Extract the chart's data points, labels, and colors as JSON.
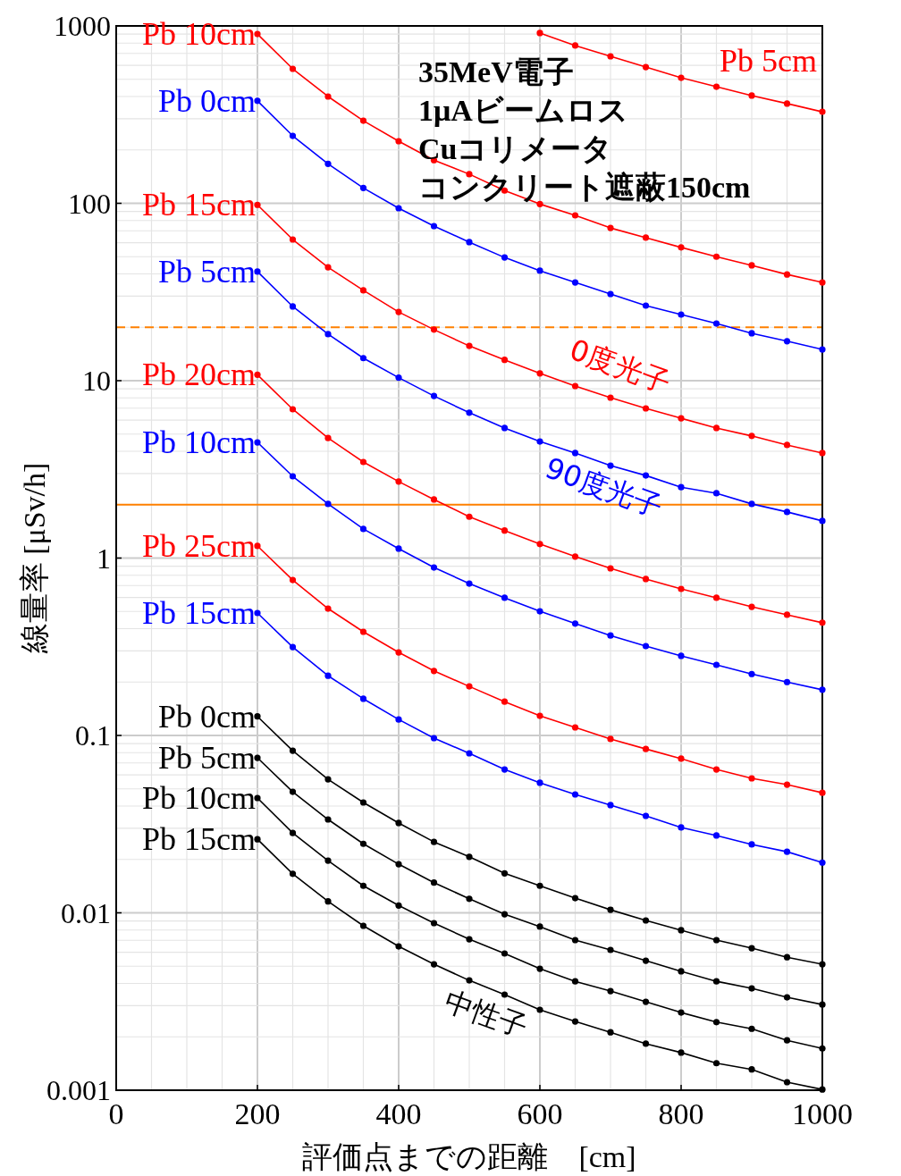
{
  "chart_data": {
    "type": "line",
    "xlabel": "評価点までの距離　[cm]",
    "ylabel": "線量率 [μSv/h]",
    "x": [
      200,
      250,
      300,
      350,
      400,
      450,
      500,
      550,
      600,
      650,
      700,
      750,
      800,
      850,
      900,
      950,
      1000
    ],
    "xlim": [
      0,
      1000
    ],
    "xticks": [
      0,
      200,
      400,
      600,
      800,
      1000
    ],
    "log": true,
    "ylim": [
      0.001,
      1000
    ],
    "yticks": [
      0.001,
      0.01,
      0.1,
      1,
      10,
      100,
      1000
    ],
    "grid": true,
    "marker": "circle",
    "line_style": "solid",
    "series": [
      {
        "name": "Pb 5cm",
        "color": "#ff0000",
        "values": [
          null,
          null,
          null,
          null,
          null,
          null,
          null,
          null,
          912,
          775,
          674,
          586,
          510,
          454,
          405,
          365,
          328
        ]
      },
      {
        "name": "Pb 10cm",
        "color": "#ff0000",
        "values": [
          900,
          573,
          400,
          292,
          224,
          175,
          146,
          118,
          99,
          85.5,
          72.6,
          64,
          56.4,
          50,
          44.7,
          39.7,
          35.8
        ]
      },
      {
        "name": "Pb 15cm",
        "color": "#ff0000",
        "values": [
          98,
          62.5,
          43.6,
          32.3,
          24.4,
          19.4,
          15.7,
          13.1,
          11.0,
          9.33,
          8.02,
          6.98,
          6.14,
          5.41,
          4.88,
          4.34,
          3.91
        ]
      },
      {
        "name": "Pb 20cm",
        "color": "#ff0000",
        "values": [
          10.8,
          6.9,
          4.75,
          3.48,
          2.7,
          2.14,
          1.71,
          1.43,
          1.2,
          1.02,
          0.875,
          0.762,
          0.67,
          0.597,
          0.531,
          0.479,
          0.432
        ]
      },
      {
        "name": "Pb 25cm",
        "color": "#ff0000",
        "values": [
          1.17,
          0.752,
          0.519,
          0.384,
          0.294,
          0.231,
          0.189,
          0.155,
          0.129,
          0.111,
          0.0955,
          0.0839,
          0.074,
          0.0643,
          0.0573,
          0.0528,
          0.0475
        ]
      },
      {
        "name": "Pb 0cm",
        "color": "#0000ff",
        "values": [
          378,
          240,
          167,
          122,
          93.8,
          74.4,
          60.4,
          49.5,
          41.7,
          35.8,
          30.8,
          26.5,
          23.6,
          21.0,
          18.5,
          16.7,
          15.0
        ]
      },
      {
        "name": "Pb 5cm",
        "color": "#0000ff",
        "values": [
          41.2,
          26.2,
          18.3,
          13.4,
          10.4,
          8.2,
          6.6,
          5.41,
          4.54,
          3.91,
          3.32,
          2.92,
          2.51,
          2.32,
          2.02,
          1.82,
          1.62
        ]
      },
      {
        "name": "Pb 10cm",
        "color": "#0000ff",
        "values": [
          4.49,
          2.89,
          2.02,
          1.46,
          1.13,
          0.885,
          0.718,
          0.597,
          0.501,
          0.427,
          0.366,
          0.319,
          0.281,
          0.25,
          0.222,
          0.2,
          0.181
        ]
      },
      {
        "name": "Pb 15cm",
        "color": "#0000ff",
        "values": [
          0.49,
          0.315,
          0.217,
          0.161,
          0.123,
          0.0966,
          0.0793,
          0.0643,
          0.0541,
          0.0465,
          0.0405,
          0.0352,
          0.0303,
          0.0273,
          0.0243,
          0.0221,
          0.0192
        ]
      },
      {
        "name": "Pb 0cm",
        "color": "#000000",
        "values": [
          0.128,
          0.082,
          0.0566,
          0.0419,
          0.0321,
          0.0251,
          0.0207,
          0.0167,
          0.0142,
          0.0121,
          0.0104,
          0.00906,
          0.00798,
          0.00702,
          0.00632,
          0.00562,
          0.00513
        ]
      },
      {
        "name": "Pb 5cm",
        "color": "#000000",
        "values": [
          0.0748,
          0.0481,
          0.0336,
          0.0245,
          0.0188,
          0.0148,
          0.012,
          0.00982,
          0.00836,
          0.00702,
          0.00618,
          0.00537,
          0.00468,
          0.00411,
          0.00375,
          0.00334,
          0.00304
        ]
      },
      {
        "name": "Pb 10cm",
        "color": "#000000",
        "values": [
          0.0444,
          0.0282,
          0.0197,
          0.0142,
          0.011,
          0.00875,
          0.0071,
          0.0059,
          0.00484,
          0.00411,
          0.00362,
          0.00315,
          0.00274,
          0.00242,
          0.00222,
          0.00191,
          0.00172
        ]
      },
      {
        "name": "Pb 15cm",
        "color": "#000000",
        "values": [
          0.026,
          0.0166,
          0.0116,
          0.00845,
          0.00647,
          0.00513,
          0.00416,
          0.00346,
          0.00284,
          0.00244,
          0.00212,
          0.00183,
          0.00163,
          0.00142,
          0.00131,
          0.00111,
          0.00101
        ]
      }
    ],
    "ref_lines": [
      {
        "axis": "y",
        "value": 20,
        "color": "#ff8000",
        "line_style": "dashed"
      },
      {
        "axis": "y",
        "value": 2,
        "color": "#ff8000",
        "line_style": "solid"
      }
    ],
    "annotations": [
      "35MeV電子",
      "1μAビームロス",
      "Cuコリメータ",
      "コンクリート遮蔽150cm",
      "0度光子",
      "90度光子",
      "中性子"
    ]
  }
}
